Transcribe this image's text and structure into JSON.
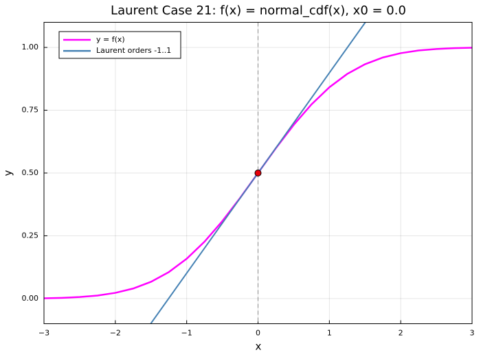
{
  "chart_data": {
    "type": "line",
    "title": "Laurent Case 21: f(x) = normal_cdf(x), x0 = 0.0",
    "xlabel": "x",
    "ylabel": "y",
    "xlim": [
      -3,
      3
    ],
    "ylim": [
      -0.1,
      1.1
    ],
    "xticks": [
      {
        "value": -3,
        "label": "−3"
      },
      {
        "value": -2,
        "label": "−2"
      },
      {
        "value": -1,
        "label": "−1"
      },
      0,
      1,
      2,
      3
    ],
    "yticks": [
      {
        "value": 0,
        "label": "0.00"
      },
      {
        "value": 0.25,
        "label": "0.25"
      },
      {
        "value": 0.5,
        "label": "0.50"
      },
      {
        "value": 0.75,
        "label": "0.75"
      },
      {
        "value": 1,
        "label": "1.00"
      }
    ],
    "grid": true,
    "legend": "upper left",
    "vline": 0,
    "marker": {
      "x": 0,
      "y": 0.5,
      "color": "#e8000b"
    },
    "series": [
      {
        "name": "y = f(x)",
        "color": "#ff00ff",
        "x": [
          -3,
          -2.75,
          -2.5,
          -2.25,
          -2,
          -1.75,
          -1.5,
          -1.25,
          -1,
          -0.75,
          -0.5,
          -0.25,
          0,
          0.25,
          0.5,
          0.75,
          1,
          1.25,
          1.5,
          1.75,
          2,
          2.25,
          2.5,
          2.75,
          3
        ],
        "values": [
          0.0013,
          0.003,
          0.0062,
          0.0122,
          0.0228,
          0.0401,
          0.0668,
          0.1056,
          0.1587,
          0.2266,
          0.3085,
          0.4013,
          0.5,
          0.5987,
          0.6915,
          0.7734,
          0.8413,
          0.8944,
          0.9332,
          0.9599,
          0.9772,
          0.9878,
          0.9938,
          0.997,
          0.9987
        ]
      },
      {
        "name": "Laurent orders -1..1",
        "color": "#4682b4",
        "x": [
          -1.504,
          1.504
        ],
        "values": [
          -0.1,
          1.1
        ]
      }
    ]
  }
}
